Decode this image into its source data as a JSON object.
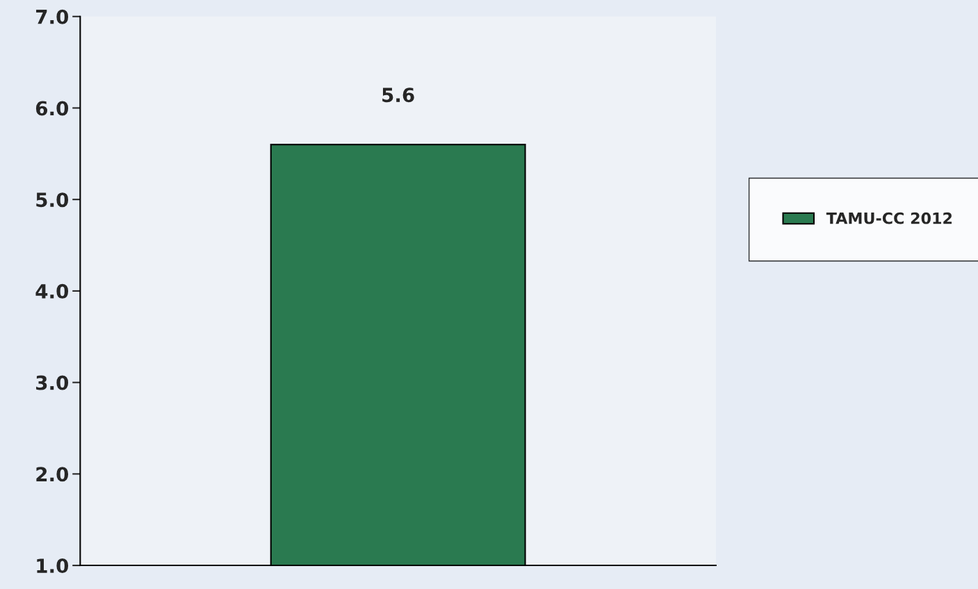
{
  "chart_data": {
    "type": "bar",
    "categories": [
      null
    ],
    "series": [
      {
        "name": "TAMU-CC 2012",
        "color": "#2a7a50",
        "values": [
          5.6
        ]
      }
    ],
    "ylim": [
      1,
      7
    ],
    "yticks": [
      {
        "value": 1,
        "label": "1.0"
      },
      {
        "value": 2,
        "label": "2.0"
      },
      {
        "value": 3,
        "label": "3.0"
      },
      {
        "value": 4,
        "label": "4.0"
      },
      {
        "value": 5,
        "label": "5.0"
      },
      {
        "value": 6,
        "label": "6.0"
      },
      {
        "value": 7,
        "label": "7.0"
      }
    ],
    "data_labels": true,
    "legend": "right",
    "grid": false
  }
}
